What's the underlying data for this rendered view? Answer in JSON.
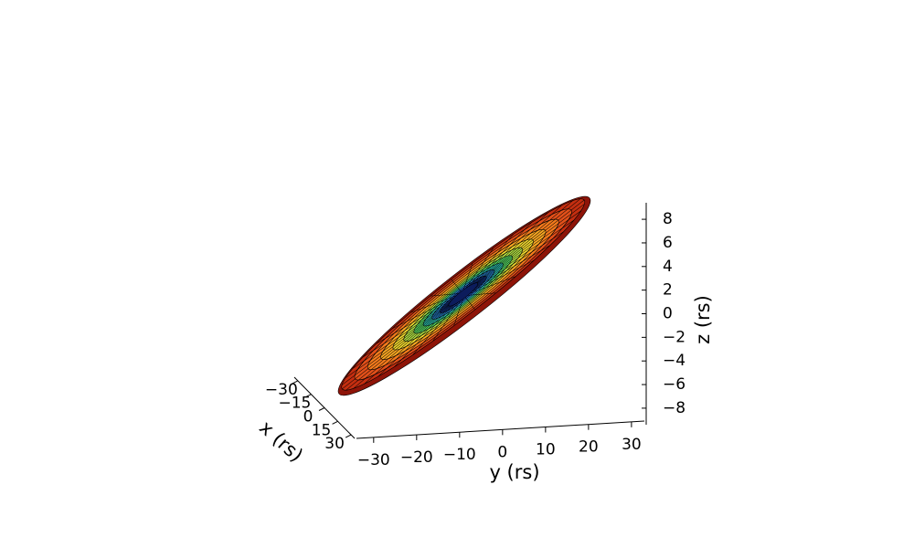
{
  "chart_data": {
    "type": "surface3d",
    "xlabel": "x (rs)",
    "ylabel": "y (rs)",
    "zlabel": "z (rs)",
    "xlim": [
      -34,
      34
    ],
    "xticks": [
      {
        "value": -30,
        "label": "−30"
      },
      {
        "value": -15,
        "label": "−15"
      },
      0,
      15,
      30
    ],
    "ylim": [
      -34,
      33
    ],
    "yticks": [
      {
        "value": -30,
        "label": "−30"
      },
      {
        "value": -20,
        "label": "−20"
      },
      {
        "value": -10,
        "label": "−10"
      },
      0,
      10,
      20,
      30
    ],
    "zlim": [
      -9.4,
      9.4
    ],
    "zticks": [
      {
        "value": -8,
        "label": "−8"
      },
      {
        "value": -6,
        "label": "−6"
      },
      {
        "value": -4,
        "label": "−4"
      },
      {
        "value": -2,
        "label": "−2"
      },
      0,
      2,
      4,
      6,
      8
    ],
    "colormap": "jet"
  }
}
